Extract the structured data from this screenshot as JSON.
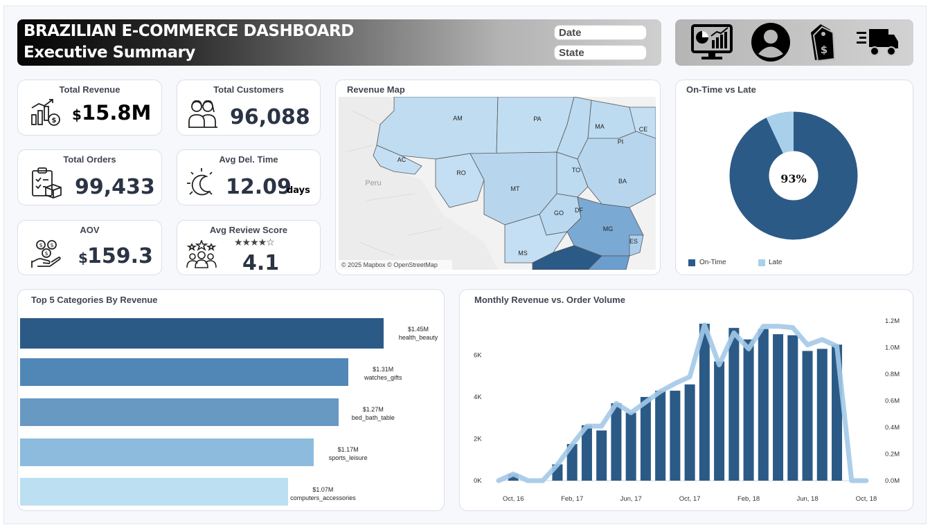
{
  "header": {
    "title": "BRAZILIAN E-COMMERCE DASHBOARD",
    "subtitle": "Executive Summary",
    "filters": [
      {
        "label": "Date"
      },
      {
        "label": "State"
      }
    ],
    "nav_icons": [
      "monitor-chart-icon",
      "user-icon",
      "price-tag-icon",
      "delivery-truck-icon"
    ]
  },
  "kpis": {
    "total_revenue": {
      "label": "Total Revenue",
      "currency": "$",
      "value": "15.8M"
    },
    "total_customers": {
      "label": "Total Customers",
      "value": "96,088"
    },
    "total_orders": {
      "label": "Total Orders",
      "value": "99,433"
    },
    "avg_delivery": {
      "label": "Avg Del. Time",
      "value": "12.09",
      "unit": "days"
    },
    "aov": {
      "label": "AOV",
      "currency": "$",
      "value": "159.3"
    },
    "avg_review": {
      "label": "Avg Review Score",
      "value": "4.1",
      "stars": "★★★★☆"
    }
  },
  "map": {
    "title": "Revenue Map",
    "attribution": "© 2025 Mapbox  © OpenStreetMap",
    "country_label": "Peru",
    "states": [
      "AM",
      "PA",
      "MA",
      "CE",
      "PI",
      "AC",
      "RO",
      "TO",
      "BA",
      "MT",
      "GO",
      "DF",
      "MG",
      "ES",
      "MS"
    ]
  },
  "donut": {
    "title": "On-Time vs Late",
    "center_label": "93%",
    "legend": [
      {
        "label": "On-Time",
        "color": "#2c5a87"
      },
      {
        "label": "Late",
        "color": "#a9d0ea"
      }
    ]
  },
  "chart_data": [
    {
      "type": "bar",
      "title": "Top 5 Categories By Revenue",
      "orientation": "horizontal",
      "categories": [
        "health_beauty",
        "watches_gifts",
        "bed_bath_table",
        "sports_leisure",
        "computers_accessories"
      ],
      "values": [
        1.45,
        1.31,
        1.27,
        1.17,
        1.07
      ],
      "value_labels": [
        "$1.45M",
        "$1.31M",
        "$1.27M",
        "$1.17M",
        "$1.07M"
      ],
      "colors": [
        "#2c5a87",
        "#5087b6",
        "#6899c3",
        "#8cbbde",
        "#bcdff2"
      ]
    },
    {
      "type": "bar",
      "title": "Monthly Revenue vs. Order Volume",
      "x": [
        "Sep, 16",
        "Oct, 16",
        "Nov, 16",
        "Dec, 16",
        "Jan, 17",
        "Feb, 17",
        "Mar, 17",
        "Apr, 17",
        "May, 17",
        "Jun, 17",
        "Jul, 17",
        "Aug, 17",
        "Sep, 17",
        "Oct, 17",
        "Nov, 17",
        "Dec, 17",
        "Jan, 18",
        "Feb, 18",
        "Mar, 18",
        "Apr, 18",
        "May, 18",
        "Jun, 18",
        "Jul, 18",
        "Aug, 18",
        "Sep, 18",
        "Oct, 18"
      ],
      "x_tick_labels": [
        "Oct, 16",
        "Feb, 17",
        "Jun, 17",
        "Oct, 17",
        "Feb, 18",
        "Jun, 18",
        "Oct, 18"
      ],
      "series": [
        {
          "kind": "bar",
          "axis": "left",
          "color": "#2c5a87",
          "values": [
            0,
            320,
            0,
            0,
            780,
            1750,
            2650,
            2400,
            3700,
            3250,
            4000,
            4300,
            4300,
            4600,
            7500,
            5700,
            7300,
            6750,
            7250,
            7000,
            6950,
            6200,
            6300,
            6500,
            0,
            0
          ]
        },
        {
          "kind": "line",
          "axis": "right",
          "color": "#a3c9e8",
          "values": [
            0,
            0.05,
            0,
            0,
            0.12,
            0.27,
            0.41,
            0.41,
            0.58,
            0.51,
            0.59,
            0.67,
            0.73,
            0.78,
            1.17,
            0.87,
            1.11,
            0.99,
            1.16,
            1.16,
            1.15,
            1.02,
            1.06,
            1.01,
            0,
            0
          ]
        }
      ],
      "y_left": {
        "ticks": [
          "0K",
          "2K",
          "4K",
          "6K"
        ],
        "tick_values": [
          0,
          2000,
          4000,
          6000
        ],
        "range": [
          0,
          7800
        ]
      },
      "y_right": {
        "ticks": [
          "0.0M",
          "0.2M",
          "0.4M",
          "0.6M",
          "0.8M",
          "1.0M",
          "1.2M"
        ],
        "tick_values": [
          0,
          0.2,
          0.4,
          0.6,
          0.8,
          1.0,
          1.2
        ],
        "range": [
          0,
          1.2
        ]
      }
    }
  ]
}
